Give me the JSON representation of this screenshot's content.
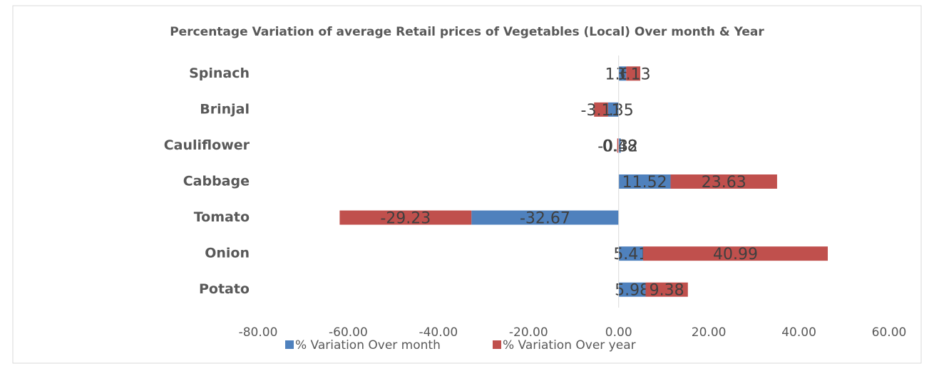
{
  "chart_data": {
    "type": "hbar_stacked",
    "title": "Percentage Variation of  average Retail prices of Vegetables (Local) Over month & Year",
    "categories": [
      "Spinach",
      "Brinjal",
      "Cauliflower",
      "Cabbage",
      "Tomato",
      "Onion",
      "Potato"
    ],
    "series": [
      {
        "name": "% Variation Over month",
        "color": "#4f81bd",
        "values": [
          1.67,
          -2.35,
          0.48,
          11.52,
          -32.67,
          5.41,
          5.98
        ]
      },
      {
        "name": "% Variation Over year",
        "color": "#c0504d",
        "values": [
          3.13,
          -3.11,
          -0.32,
          23.63,
          -29.23,
          40.99,
          9.38
        ]
      }
    ],
    "xlim": [
      -80,
      60
    ],
    "xticks": [
      {
        "value": -80,
        "label": "-80.00"
      },
      {
        "value": -60,
        "label": "-60.00"
      },
      {
        "value": -40,
        "label": "-40.00"
      },
      {
        "value": -20,
        "label": "-20.00"
      },
      {
        "value": 0,
        "label": "0.00"
      },
      {
        "value": 20,
        "label": "20.00"
      },
      {
        "value": 40,
        "label": "40.00"
      },
      {
        "value": 60,
        "label": "60.00"
      }
    ],
    "legend": "bottom"
  }
}
